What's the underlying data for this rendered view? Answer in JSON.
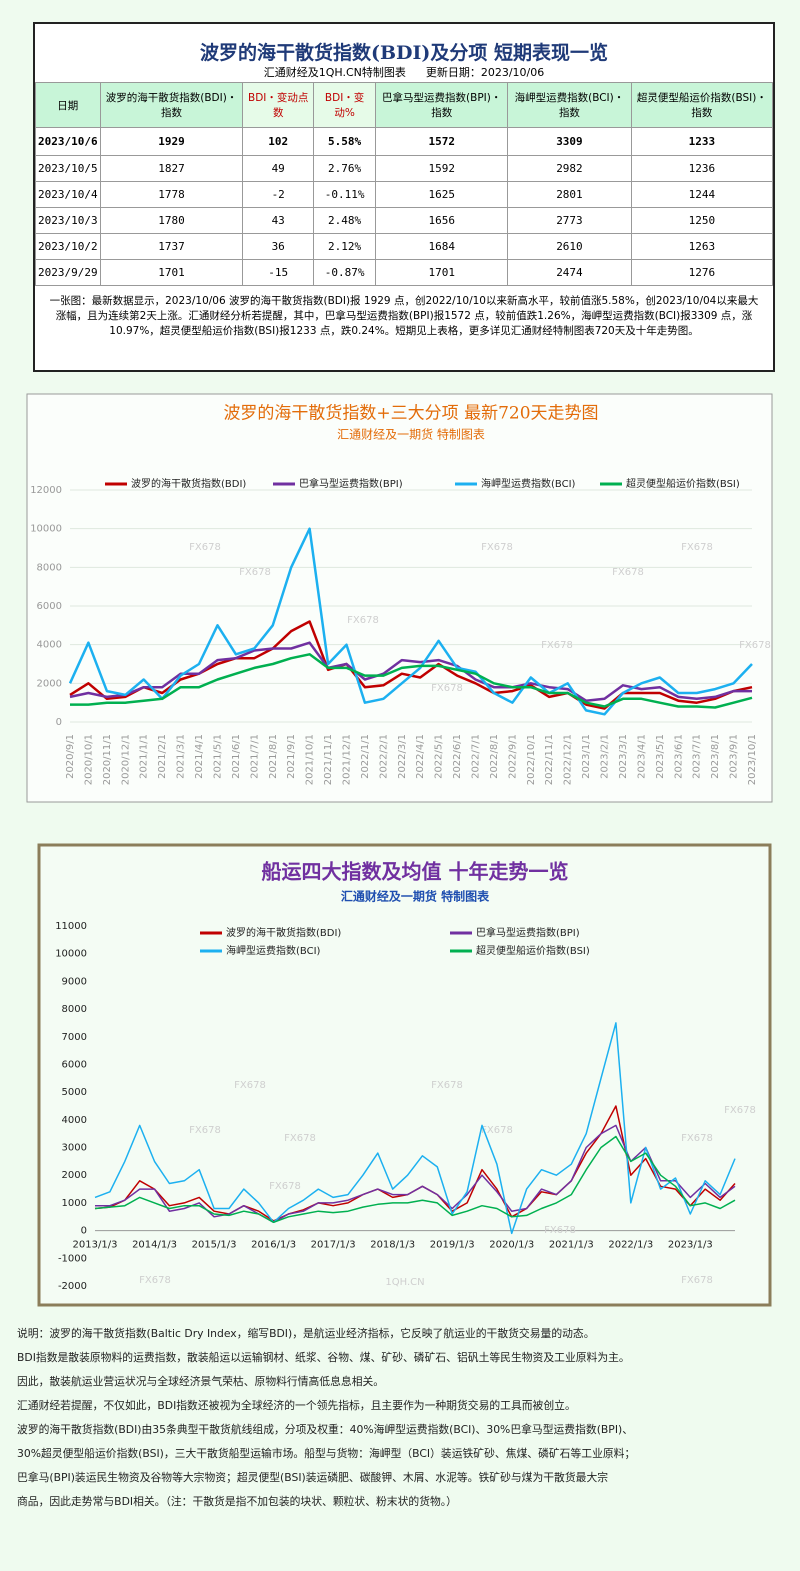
{
  "header": {
    "title": "波罗的海干散货指数(BDI)及分项  短期表现一览",
    "source": "汇通财经及1QH.CN特制图表",
    "updated": "更新日期：2023/10/06"
  },
  "table": {
    "columns": [
      "日期",
      "波罗的海干散货指数(BDI)・指数",
      "BDI・变动点数",
      "BDI・变动%",
      "巴拿马型运费指数(BPI)・指数",
      "海岬型运费指数(BCI)・指数",
      "超灵便型船运价指数(BSI)・指数"
    ],
    "rows": [
      [
        "2023/10/6",
        "1929",
        "102",
        "5.58%",
        "1572",
        "3309",
        "1233"
      ],
      [
        "2023/10/5",
        "1827",
        "49",
        "2.76%",
        "1592",
        "2982",
        "1236"
      ],
      [
        "2023/10/4",
        "1778",
        "-2",
        "-0.11%",
        "1625",
        "2801",
        "1244"
      ],
      [
        "2023/10/3",
        "1780",
        "43",
        "2.48%",
        "1656",
        "2773",
        "1250"
      ],
      [
        "2023/10/2",
        "1737",
        "36",
        "2.12%",
        "1684",
        "2610",
        "1263"
      ],
      [
        "2023/9/29",
        "1701",
        "-15",
        "-0.87%",
        "1701",
        "2474",
        "1276"
      ]
    ],
    "note": "一张图：最新数据显示，2023/10/06 波罗的海干散货指数(BDI)报 1929 点，创2022/10/10以来新高水平，较前值涨5.58%，创2023/10/04以来最大涨幅，且为连续第2天上涨。汇通财经分析若提醒，其中，巴拿马型运费指数(BPI)报1572 点，较前值跌1.26%，海岬型运费指数(BCI)报3309 点，涨10.97%，超灵便型船运价指数(BSI)报1233 点，跌0.24%。短期见上表格，更多详见汇通财经特制图表720天及十年走势图。"
  },
  "chart_data": [
    {
      "type": "line",
      "title": "波罗的海干散货指数+三大分项  最新720天走势图",
      "subtitle": "汇通财经及一期货  特制图表",
      "watermark": "FX678",
      "legend": "top",
      "grid": true,
      "categories": [
        "2020/9/1",
        "2020/10/1",
        "2020/11/1",
        "2020/12/1",
        "2021/1/1",
        "2021/2/1",
        "2021/3/1",
        "2021/4/1",
        "2021/5/1",
        "2021/6/1",
        "2021/7/1",
        "2021/8/1",
        "2021/9/1",
        "2021/10/1",
        "2021/11/1",
        "2021/12/1",
        "2022/1/1",
        "2022/2/1",
        "2022/3/1",
        "2022/4/1",
        "2022/5/1",
        "2022/6/1",
        "2022/7/1",
        "2022/8/1",
        "2022/9/1",
        "2022/10/1",
        "2022/11/1",
        "2022/12/1",
        "2023/1/1",
        "2023/2/1",
        "2023/3/1",
        "2023/4/1",
        "2023/5/1",
        "2023/6/1",
        "2023/7/1",
        "2023/8/1",
        "2023/9/1",
        "2023/10/1"
      ],
      "ylim": [
        0,
        12000
      ],
      "yticks": [
        0,
        2000,
        4000,
        6000,
        8000,
        10000,
        12000
      ],
      "series": [
        {
          "name": "波罗的海干散货指数(BDI)",
          "color": "#c00000",
          "values": [
            1400,
            2000,
            1200,
            1300,
            1800,
            1500,
            2200,
            2500,
            3000,
            3300,
            3300,
            3800,
            4700,
            5200,
            2700,
            3000,
            1800,
            1900,
            2500,
            2300,
            3000,
            2400,
            2000,
            1500,
            1600,
            1900,
            1300,
            1500,
            900,
            700,
            1500,
            1500,
            1500,
            1100,
            1000,
            1200,
            1600,
            1800
          ]
        },
        {
          "name": "巴拿马型运费指数(BPI)",
          "color": "#7030a0",
          "values": [
            1300,
            1500,
            1300,
            1400,
            1800,
            1800,
            2500,
            2500,
            3200,
            3300,
            3700,
            3800,
            3800,
            4100,
            2800,
            3000,
            2200,
            2500,
            3200,
            3100,
            3200,
            2900,
            2200,
            1800,
            1800,
            2000,
            1800,
            1700,
            1100,
            1200,
            1900,
            1700,
            1800,
            1300,
            1200,
            1300,
            1600,
            1600
          ]
        },
        {
          "name": "海岬型运费指数(BCI)",
          "color": "#1cb0f0",
          "values": [
            2000,
            4100,
            1600,
            1400,
            2200,
            1200,
            2400,
            3000,
            5000,
            3500,
            3800,
            5000,
            8000,
            10000,
            3000,
            4000,
            1000,
            1200,
            2000,
            2800,
            4200,
            2800,
            2600,
            1500,
            1000,
            2300,
            1500,
            2000,
            600,
            400,
            1500,
            2000,
            2300,
            1500,
            1500,
            1700,
            2000,
            3000
          ]
        },
        {
          "name": "超灵便型船运价指数(BSI)",
          "color": "#00b050",
          "values": [
            900,
            900,
            1000,
            1000,
            1100,
            1200,
            1800,
            1800,
            2200,
            2500,
            2800,
            3000,
            3300,
            3500,
            2800,
            2800,
            2400,
            2400,
            2800,
            2900,
            2900,
            2700,
            2500,
            2000,
            1800,
            1800,
            1500,
            1500,
            1000,
            800,
            1200,
            1200,
            1000,
            800,
            800,
            750,
            1000,
            1250
          ]
        }
      ]
    },
    {
      "type": "line",
      "title": "船运四大指数及均值 十年走势一览",
      "subtitle": "汇通财经及一期货 特制图表",
      "watermark": "FX678",
      "watermark2": "1QH.CN",
      "legend": "top",
      "grid": false,
      "categories": [
        "2013/1/3",
        null,
        null,
        null,
        "2014/1/3",
        null,
        null,
        null,
        "2015/1/3",
        null,
        null,
        null,
        "2016/1/3",
        null,
        null,
        null,
        "2017/1/3",
        null,
        null,
        null,
        "2018/1/3",
        null,
        null,
        null,
        "2019/1/3",
        null,
        null,
        null,
        "2020/1/3",
        null,
        null,
        null,
        "2021/1/3",
        null,
        null,
        null,
        "2022/1/3",
        null,
        null,
        null,
        "2023/1/3",
        null,
        null,
        null
      ],
      "ylim": [
        -2000,
        11000
      ],
      "yticks": [
        -2000,
        -1000,
        0,
        1000,
        2000,
        3000,
        4000,
        5000,
        6000,
        7000,
        8000,
        9000,
        10000,
        11000
      ],
      "series": [
        {
          "name": "波罗的海干散货指数(BDI)",
          "color": "#c00000",
          "values": [
            800,
            850,
            1100,
            1800,
            1500,
            900,
            1000,
            1200,
            700,
            600,
            900,
            700,
            350,
            600,
            750,
            1000,
            900,
            1000,
            1300,
            1500,
            1200,
            1300,
            1600,
            1300,
            700,
            1000,
            2200,
            1500,
            500,
            800,
            1400,
            1300,
            1800,
            2800,
            3500,
            4500,
            2000,
            2600,
            1600,
            1500,
            900,
            1500,
            1100,
            1700
          ]
        },
        {
          "name": "巴拿马型运费指数(BPI)",
          "color": "#7030a0",
          "values": [
            900,
            900,
            1100,
            1500,
            1500,
            700,
            800,
            1000,
            500,
            600,
            900,
            600,
            300,
            600,
            700,
            1000,
            1000,
            1100,
            1300,
            1500,
            1300,
            1300,
            1600,
            1300,
            800,
            1300,
            2000,
            1400,
            700,
            800,
            1500,
            1300,
            1800,
            3000,
            3500,
            3800,
            2500,
            3000,
            1800,
            1800,
            1200,
            1700,
            1200,
            1600
          ]
        },
        {
          "name": "海岬型运费指数(BCI)",
          "color": "#1cb0f0",
          "values": [
            1200,
            1400,
            2500,
            3800,
            2500,
            1700,
            1800,
            2200,
            800,
            800,
            1500,
            1000,
            300,
            800,
            1100,
            1500,
            1200,
            1300,
            2000,
            2800,
            1500,
            2000,
            2700,
            2300,
            600,
            1400,
            3800,
            2400,
            -100,
            1500,
            2200,
            2000,
            2400,
            3500,
            5500,
            7500,
            1000,
            3000,
            1500,
            1900,
            600,
            1800,
            1300,
            2600
          ]
        },
        {
          "name": "超灵便型船运价指数(BSI)",
          "color": "#00b050",
          "values": [
            800,
            850,
            900,
            1200,
            1000,
            800,
            900,
            900,
            600,
            550,
            700,
            600,
            300,
            500,
            600,
            700,
            650,
            700,
            850,
            950,
            1000,
            1000,
            1100,
            1000,
            550,
            700,
            900,
            800,
            500,
            550,
            800,
            1000,
            1300,
            2200,
            3000,
            3400,
            2500,
            2800,
            2000,
            1600,
            900,
            1000,
            800,
            1100
          ]
        }
      ]
    }
  ],
  "description": [
    "说明：波罗的海干散货指数(Baltic Dry Index，缩写BDI)，是航运业经济指标，它反映了航运业的干散货交易量的动态。",
    "BDI指数是散装原物料的运费指数，散装船运以运输钢材、纸浆、谷物、煤、矿砂、磷矿石、铝矾土等民生物资及工业原料为主。",
    "因此，散装航运业营运状况与全球经济景气荣枯、原物料行情高低息息相关。",
    "汇通财经若提醒，不仅如此，BDI指数还被视为全球经济的一个领先指标，且主要作为一种期货交易的工具而被创立。",
    "波罗的海干散货指数(BDI)由35条典型干散货航线组成，分项及权重：40%海岬型运费指数(BCI)、30%巴拿马型运费指数(BPI)、",
    "30%超灵便型船运价指数(BSI)，三大干散货船型运输市场。船型与货物：海岬型（BCI）装运铁矿砂、焦煤、磷矿石等工业原料；",
    "巴拿马(BPI)装运民生物资及谷物等大宗物资；超灵便型(BSI)装运磷肥、碳酸钾、木屑、水泥等。铁矿砂与煤为干散货最大宗",
    "商品，因此走势常与BDI相关。（注：干散货是指不加包装的块状、颗粒状、粉末状的货物。）"
  ]
}
